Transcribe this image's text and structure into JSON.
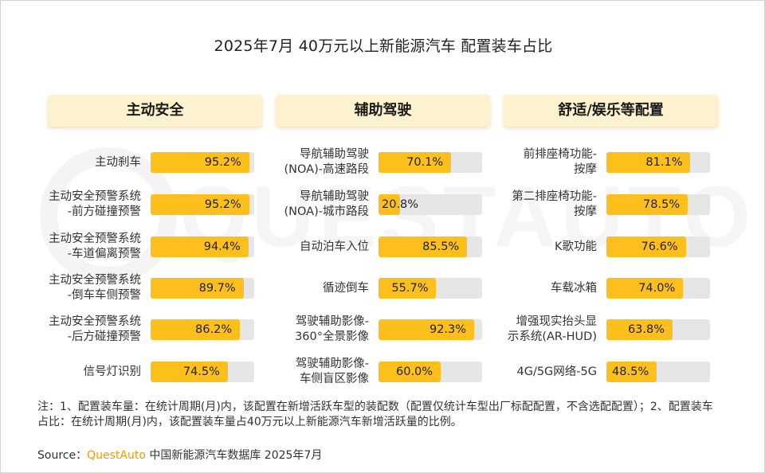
{
  "title": "2025年7月 40万元以上新能源汽车 配置装车占比",
  "watermark": "QUESTAUTO",
  "chart_data": [
    {
      "type": "bar",
      "title": "主动安全",
      "unit": "%",
      "xlim": [
        0,
        100
      ],
      "categories": [
        "主动刹车",
        "主动安全预警系统\n-前方碰撞预警",
        "主动安全预警系统\n-车道偏离预警",
        "主动安全预警系统\n-倒车车侧预警",
        "主动安全预警系统\n-后方碰撞预警",
        "信号灯识别"
      ],
      "values": [
        95.2,
        95.2,
        94.4,
        89.7,
        86.2,
        74.5
      ],
      "labels": [
        "95.2%",
        "95.2%",
        "94.4%",
        "89.7%",
        "86.2%",
        "74.5%"
      ]
    },
    {
      "type": "bar",
      "title": "辅助驾驶",
      "unit": "%",
      "xlim": [
        0,
        100
      ],
      "categories": [
        "导航辅助驾驶\n(NOA)-高速路段",
        "导航辅助驾驶\n(NOA)-城市路段",
        "自动泊车入位",
        "循迹倒车",
        "驾驶辅助影像-\n360°全景影像",
        "驾驶辅助影像-\n车侧盲区影像"
      ],
      "values": [
        70.1,
        20.8,
        85.5,
        55.7,
        92.3,
        60.0
      ],
      "labels": [
        "70.1%",
        "20.8%",
        "85.5%",
        "55.7%",
        "92.3%",
        "60.0%"
      ]
    },
    {
      "type": "bar",
      "title": "舒适/娱乐等配置",
      "unit": "%",
      "xlim": [
        0,
        100
      ],
      "categories": [
        "前排座椅功能-\n按摩",
        "第二排座椅功能-\n按摩",
        "K歌功能",
        "车载冰箱",
        "增强现实抬头显\n示系统(AR-HUD)",
        "4G/5G网络-5G"
      ],
      "values": [
        81.1,
        78.5,
        76.6,
        74.0,
        63.8,
        48.5
      ],
      "labels": [
        "81.1%",
        "78.5%",
        "76.6%",
        "74.0%",
        "63.8%",
        "48.5%"
      ]
    }
  ],
  "notes": "注：1、配置装车量：在统计周期(月)内，该配置在新增活跃车型的装配数（配置仅统计车型出厂标配配置，不含选配配置）；2、配置装车占比：在统计周期(月)内，该配置装车量占40万元以上新能源汽车新增活跃量的比例。",
  "source": {
    "prefix": "Source：",
    "brand": "QuestAuto",
    "suffix": " 中国新能源汽车数据库 2025年7月"
  },
  "colors": {
    "bar": "#fcbf1c",
    "track": "#e6e6e6",
    "header_bg": "#fdf2cf",
    "brand": "#f29b00"
  }
}
